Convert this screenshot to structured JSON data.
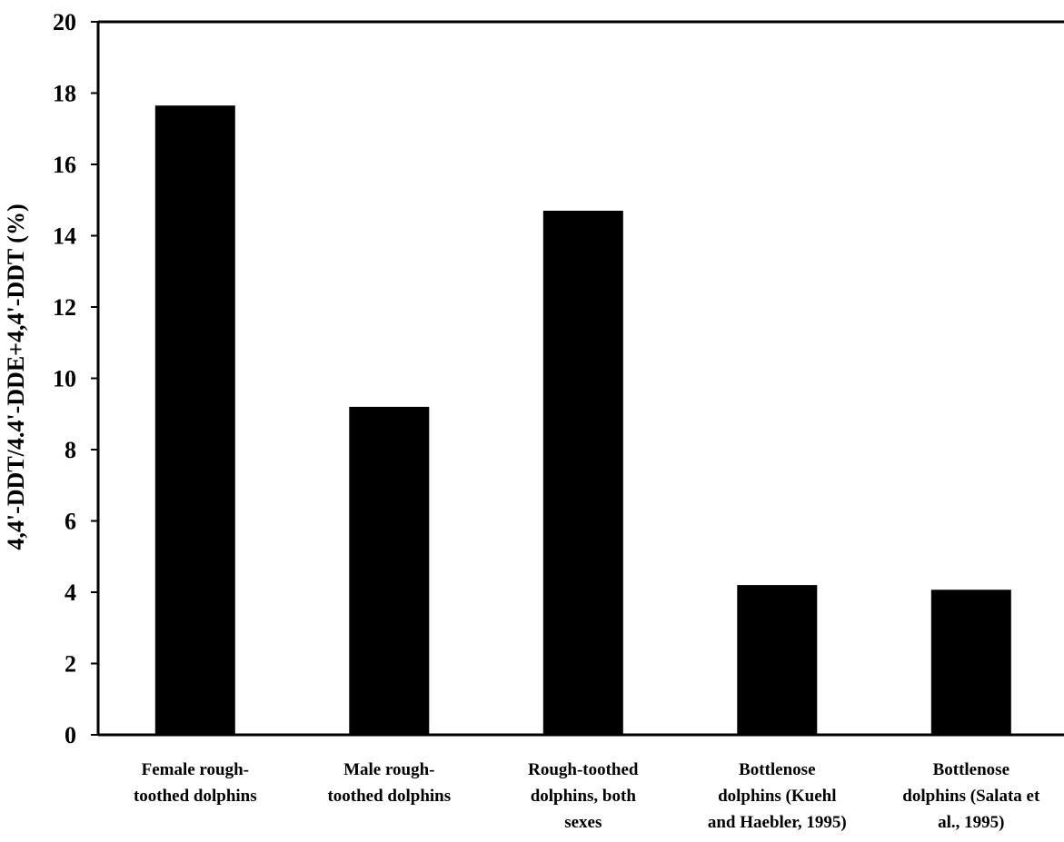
{
  "chart_data": {
    "type": "bar",
    "title": "",
    "xlabel": "",
    "ylabel": "4,4'-DDT/4.4'-DDE+4,4'-DDT (%)",
    "ylim": [
      0,
      20
    ],
    "yticks": [
      0,
      2,
      4,
      6,
      8,
      10,
      12,
      14,
      16,
      18,
      20
    ],
    "grid": false,
    "categories": [
      [
        "Female rough-",
        "toothed dolphins"
      ],
      [
        "Male rough-",
        "toothed dolphins"
      ],
      [
        "Rough-toothed",
        "dolphins, both",
        "sexes"
      ],
      [
        "Bottlenose",
        "dolphins (Kuehl",
        "and Haebler, 1995)"
      ],
      [
        "Bottlenose",
        "dolphins (Salata et",
        "al., 1995)"
      ]
    ],
    "values": [
      17.65,
      9.2,
      14.7,
      4.2,
      4.07
    ],
    "bar_color": "#000000"
  }
}
